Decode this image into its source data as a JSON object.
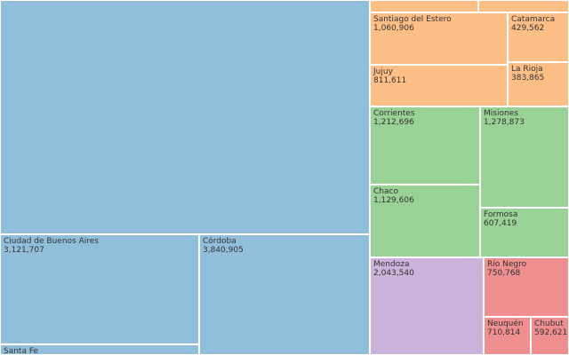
{
  "chart_data": {
    "type": "treemap",
    "groups": [
      {
        "name": "",
        "color": "#91bfdb",
        "items": [
          {
            "id": "buenos-aires",
            "name": "",
            "value": null,
            "value_label": ""
          },
          {
            "id": "ciudad-de-buenos-aires",
            "name": "Ciudad de Buenos Aires",
            "value": 3121707,
            "value_label": "3,121,707"
          },
          {
            "id": "santa-fe",
            "name": "Santa Fe",
            "value": null,
            "value_label": ""
          },
          {
            "id": "cordoba",
            "name": "Córdoba",
            "value": 3840905,
            "value_label": "3,840,905"
          }
        ]
      },
      {
        "name": "",
        "color": "#fdbf86",
        "items": [
          {
            "id": "top-left-hidden",
            "name": "",
            "value": null,
            "value_label": ""
          },
          {
            "id": "top-right-hidden",
            "name": "",
            "value": null,
            "value_label": ""
          },
          {
            "id": "santiago-del-estero",
            "name": "Santiago del Estero",
            "value": 1060906,
            "value_label": "1,060,906"
          },
          {
            "id": "catamarca",
            "name": "Catamarca",
            "value": 429562,
            "value_label": "429,562"
          },
          {
            "id": "jujuy",
            "name": "Jujuy",
            "value": 811611,
            "value_label": "811,611"
          },
          {
            "id": "la-rioja",
            "name": "La Rioja",
            "value": 383865,
            "value_label": "383,865"
          }
        ]
      },
      {
        "name": "",
        "color": "#98d295",
        "items": [
          {
            "id": "corrientes",
            "name": "Corrientes",
            "value": 1212696,
            "value_label": "1,212,696"
          },
          {
            "id": "misiones",
            "name": "Misiones",
            "value": 1278873,
            "value_label": "1,278,873"
          },
          {
            "id": "chaco",
            "name": "Chaco",
            "value": 1129606,
            "value_label": "1,129,606"
          },
          {
            "id": "formosa",
            "name": "Formosa",
            "value": 607419,
            "value_label": "607,419"
          }
        ]
      },
      {
        "name": "",
        "color": "#cbb2da",
        "items": [
          {
            "id": "mendoza",
            "name": "Mendoza",
            "value": 2043540,
            "value_label": "2,043,540"
          }
        ]
      },
      {
        "name": "",
        "color": "#ef8e8e",
        "items": [
          {
            "id": "rio-negro",
            "name": "Río Negro",
            "value": 750768,
            "value_label": "750,768"
          },
          {
            "id": "neuquen",
            "name": "Neuquén",
            "value": 710814,
            "value_label": "710,814"
          },
          {
            "id": "chubut",
            "name": "Chubut",
            "value": 592621,
            "value_label": "592,621"
          }
        ]
      }
    ]
  }
}
